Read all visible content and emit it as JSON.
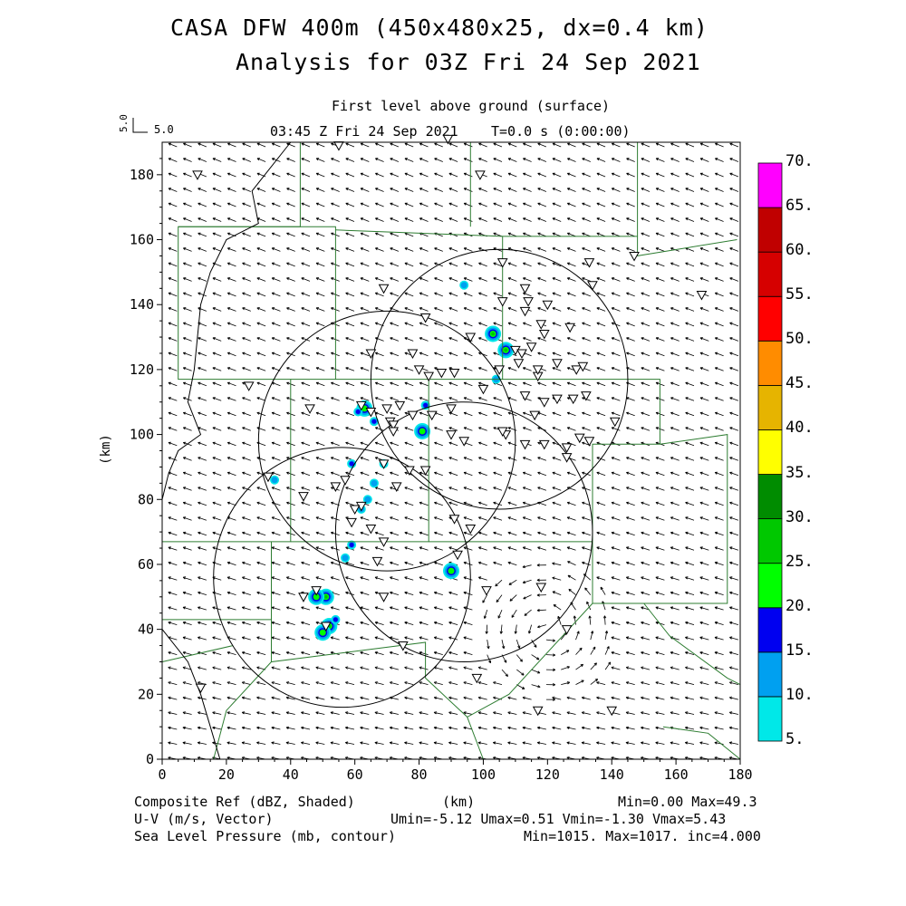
{
  "header": {
    "title_line1": "CASA DFW 400m (450x480x25, dx=0.4 km)",
    "title_line2": "Analysis for 03Z Fri 24 Sep 2021",
    "level": "First level above ground (surface)",
    "valid_time": "03:45 Z Fri 24 Sep 2021",
    "model_time": "T=0.0 s (0:00:00)",
    "vector_scale_vertical": "5.0",
    "vector_scale_horizontal": "5.0"
  },
  "footer": {
    "line1_left": "Composite Ref (dBZ, Shaded)",
    "line1_mid": "(km)",
    "line1_right": "Min=0.00 Max=49.3",
    "line2_left": "U-V (m/s, Vector)",
    "line2_right": "Umin=-5.12 Umax=0.51 Vmin=-1.30 Vmax=5.43",
    "line3_left": "Sea Level Pressure (mb, contour)",
    "line3_right": "Min=1015. Max=1017. inc=4.000"
  },
  "colorbar": {
    "levels": [
      "5.",
      "10.",
      "15.",
      "20.",
      "25.",
      "30.",
      "35.",
      "40.",
      "45.",
      "50.",
      "55.",
      "60.",
      "65.",
      "70."
    ],
    "colors": [
      "#00e8e8",
      "#00a0f0",
      "#0000f0",
      "#00ff00",
      "#00c800",
      "#008c00",
      "#ffff00",
      "#e6b400",
      "#ff8c00",
      "#ff0000",
      "#d60000",
      "#c00000",
      "#ff00ff"
    ]
  },
  "chart_data": {
    "type": "heatmap",
    "title": "CASA DFW 400m (450x480x25, dx=0.4 km)",
    "subtitle": "Analysis for 03Z Fri 24 Sep 2021",
    "xlabel": "(km)",
    "ylabel": "(km)",
    "xlim": [
      0,
      180
    ],
    "ylim": [
      0,
      190
    ],
    "xticks": [
      "0",
      "20",
      "40",
      "60",
      "80",
      "100",
      "120",
      "140",
      "160",
      "180"
    ],
    "yticks": [
      "0",
      "20",
      "40",
      "60",
      "80",
      "100",
      "120",
      "140",
      "160",
      "180"
    ],
    "radar_range_circles": [
      {
        "x": 105,
        "y": 117,
        "r": 40
      },
      {
        "x": 70,
        "y": 98,
        "r": 40
      },
      {
        "x": 94,
        "y": 70,
        "r": 40
      },
      {
        "x": 56,
        "y": 56,
        "r": 40
      }
    ],
    "reflectivity_cells": [
      {
        "x": 51,
        "y": 50,
        "dbz": 25
      },
      {
        "x": 48,
        "y": 50,
        "dbz": 20
      },
      {
        "x": 52,
        "y": 41,
        "dbz": 25
      },
      {
        "x": 50,
        "y": 39,
        "dbz": 20
      },
      {
        "x": 54,
        "y": 43,
        "dbz": 15
      },
      {
        "x": 103,
        "y": 131,
        "dbz": 25
      },
      {
        "x": 107,
        "y": 126,
        "dbz": 25
      },
      {
        "x": 94,
        "y": 146,
        "dbz": 10
      },
      {
        "x": 63,
        "y": 108,
        "dbz": 20
      },
      {
        "x": 61,
        "y": 107,
        "dbz": 15
      },
      {
        "x": 66,
        "y": 104,
        "dbz": 15
      },
      {
        "x": 81,
        "y": 101,
        "dbz": 20
      },
      {
        "x": 82,
        "y": 109,
        "dbz": 15
      },
      {
        "x": 59,
        "y": 91,
        "dbz": 15
      },
      {
        "x": 69,
        "y": 91,
        "dbz": 15
      },
      {
        "x": 62,
        "y": 77,
        "dbz": 10
      },
      {
        "x": 59,
        "y": 66,
        "dbz": 15
      },
      {
        "x": 90,
        "y": 58,
        "dbz": 20
      },
      {
        "x": 57,
        "y": 62,
        "dbz": 10
      },
      {
        "x": 35,
        "y": 86,
        "dbz": 10
      },
      {
        "x": 104,
        "y": 117,
        "dbz": 10
      },
      {
        "x": 64,
        "y": 80,
        "dbz": 10
      },
      {
        "x": 66,
        "y": 85,
        "dbz": 10
      }
    ],
    "stations": [
      [
        55,
        189
      ],
      [
        89,
        191
      ],
      [
        11,
        180
      ],
      [
        99,
        180
      ],
      [
        106,
        153
      ],
      [
        133,
        153
      ],
      [
        69,
        145
      ],
      [
        134,
        146
      ],
      [
        113,
        145
      ],
      [
        114,
        141
      ],
      [
        106,
        141
      ],
      [
        120,
        140
      ],
      [
        113,
        138
      ],
      [
        118,
        134
      ],
      [
        82,
        136
      ],
      [
        127,
        133
      ],
      [
        119,
        131
      ],
      [
        96,
        130
      ],
      [
        115,
        127
      ],
      [
        110,
        126
      ],
      [
        112,
        125
      ],
      [
        78,
        125
      ],
      [
        65,
        125
      ],
      [
        111,
        122
      ],
      [
        123,
        122
      ],
      [
        80,
        120
      ],
      [
        87,
        119
      ],
      [
        91,
        119
      ],
      [
        83,
        118
      ],
      [
        117,
        118
      ],
      [
        129,
        120
      ],
      [
        131,
        121
      ],
      [
        117,
        120
      ],
      [
        105,
        120
      ],
      [
        27,
        115
      ],
      [
        113,
        112
      ],
      [
        128,
        111
      ],
      [
        119,
        110
      ],
      [
        123,
        111
      ],
      [
        132,
        112
      ],
      [
        100,
        114
      ],
      [
        78,
        106
      ],
      [
        90,
        108
      ],
      [
        65,
        107
      ],
      [
        62,
        109
      ],
      [
        46,
        108
      ],
      [
        70,
        108
      ],
      [
        74,
        109
      ],
      [
        116,
        106
      ],
      [
        71,
        104
      ],
      [
        72,
        103
      ],
      [
        84,
        106
      ],
      [
        72,
        101
      ],
      [
        141,
        104
      ],
      [
        107,
        100
      ],
      [
        94,
        98
      ],
      [
        90,
        100
      ],
      [
        113,
        97
      ],
      [
        130,
        99
      ],
      [
        119,
        97
      ],
      [
        126,
        96
      ],
      [
        126,
        93
      ],
      [
        133,
        98
      ],
      [
        106,
        101
      ],
      [
        69,
        91
      ],
      [
        77,
        89
      ],
      [
        82,
        89
      ],
      [
        33,
        87
      ],
      [
        57,
        86
      ],
      [
        54,
        84
      ],
      [
        73,
        84
      ],
      [
        44,
        81
      ],
      [
        62,
        78
      ],
      [
        60,
        77
      ],
      [
        91,
        74
      ],
      [
        59,
        73
      ],
      [
        65,
        71
      ],
      [
        96,
        71
      ],
      [
        92,
        63
      ],
      [
        69,
        67
      ],
      [
        67,
        61
      ],
      [
        118,
        53
      ],
      [
        48,
        52
      ],
      [
        44,
        50
      ],
      [
        69,
        50
      ],
      [
        101,
        52
      ],
      [
        51,
        41
      ],
      [
        126,
        40
      ],
      [
        75,
        35
      ],
      [
        98,
        25
      ],
      [
        12,
        22
      ],
      [
        117,
        15
      ],
      [
        140,
        15
      ],
      [
        147,
        155
      ],
      [
        168,
        143
      ]
    ]
  }
}
